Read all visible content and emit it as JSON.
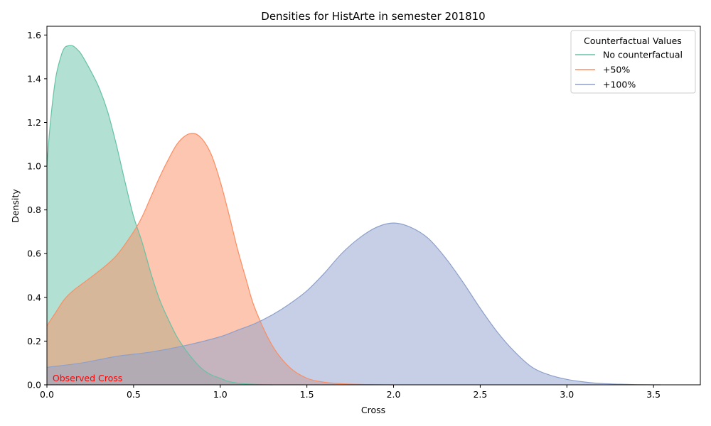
{
  "chart_data": {
    "type": "area",
    "title": "Densities for HistArte in semester 201810",
    "xlabel": "Cross",
    "ylabel": "Density",
    "xlim": [
      0,
      3.77
    ],
    "ylim": [
      0,
      1.64
    ],
    "xticks": [
      "0.0",
      "0.5",
      "1.0",
      "1.5",
      "2.0",
      "2.5",
      "3.0",
      "3.5"
    ],
    "xtick_values": [
      0,
      0.5,
      1.0,
      1.5,
      2.0,
      2.5,
      3.0,
      3.5
    ],
    "yticks": [
      "0.0",
      "0.2",
      "0.4",
      "0.6",
      "0.8",
      "1.0",
      "1.2",
      "1.4",
      "1.6"
    ],
    "ytick_values": [
      0,
      0.2,
      0.4,
      0.6,
      0.8,
      1.0,
      1.2,
      1.4,
      1.6
    ],
    "grid": false,
    "legend": {
      "title": "Counterfactual Values",
      "placement": "top-right"
    },
    "annotation": {
      "text": "Observed Cross",
      "x": 0.02,
      "y": 0.02,
      "color": "#ff0000"
    },
    "series": [
      {
        "name": "No counterfactual",
        "color": "#66c2a5",
        "x": [
          0.0,
          0.02,
          0.05,
          0.08,
          0.1,
          0.12,
          0.15,
          0.18,
          0.2,
          0.25,
          0.3,
          0.35,
          0.4,
          0.45,
          0.5,
          0.55,
          0.6,
          0.65,
          0.7,
          0.75,
          0.8,
          0.85,
          0.9,
          0.95,
          1.0,
          1.05,
          1.1,
          1.15,
          1.2,
          1.25,
          1.3
        ],
        "y": [
          1.0,
          1.2,
          1.4,
          1.5,
          1.54,
          1.55,
          1.55,
          1.53,
          1.51,
          1.44,
          1.36,
          1.25,
          1.1,
          0.93,
          0.77,
          0.65,
          0.51,
          0.39,
          0.3,
          0.22,
          0.16,
          0.11,
          0.07,
          0.045,
          0.03,
          0.015,
          0.008,
          0.004,
          0.002,
          0.001,
          0.0
        ]
      },
      {
        "name": "+50%",
        "color": "#fc8d62",
        "x": [
          0.0,
          0.05,
          0.1,
          0.15,
          0.2,
          0.3,
          0.4,
          0.5,
          0.55,
          0.6,
          0.65,
          0.7,
          0.75,
          0.8,
          0.85,
          0.9,
          0.95,
          1.0,
          1.05,
          1.1,
          1.15,
          1.2,
          1.3,
          1.4,
          1.5,
          1.6,
          1.7,
          1.8,
          1.9,
          2.0
        ],
        "y": [
          0.27,
          0.33,
          0.39,
          0.43,
          0.46,
          0.52,
          0.59,
          0.7,
          0.77,
          0.86,
          0.95,
          1.03,
          1.1,
          1.14,
          1.15,
          1.12,
          1.05,
          0.93,
          0.78,
          0.62,
          0.48,
          0.35,
          0.18,
          0.08,
          0.03,
          0.012,
          0.005,
          0.002,
          0.001,
          0.0
        ]
      },
      {
        "name": "+100%",
        "color": "#8da0cb",
        "x": [
          0.0,
          0.2,
          0.4,
          0.6,
          0.8,
          1.0,
          1.1,
          1.2,
          1.3,
          1.4,
          1.5,
          1.6,
          1.7,
          1.8,
          1.9,
          2.0,
          2.1,
          2.2,
          2.3,
          2.4,
          2.5,
          2.6,
          2.7,
          2.8,
          2.9,
          3.0,
          3.1,
          3.2,
          3.3,
          3.4,
          3.54
        ],
        "y": [
          0.08,
          0.1,
          0.13,
          0.15,
          0.18,
          0.22,
          0.25,
          0.28,
          0.32,
          0.37,
          0.43,
          0.51,
          0.6,
          0.67,
          0.72,
          0.74,
          0.72,
          0.67,
          0.58,
          0.47,
          0.35,
          0.24,
          0.15,
          0.08,
          0.045,
          0.025,
          0.013,
          0.006,
          0.003,
          0.001,
          0.0
        ]
      }
    ]
  }
}
